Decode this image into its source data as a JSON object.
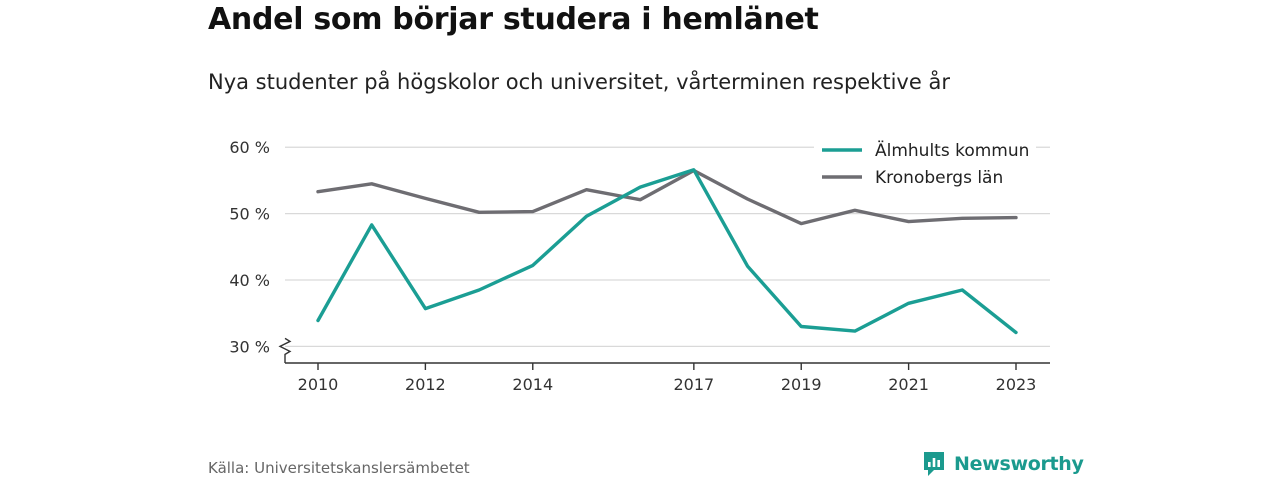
{
  "title": "Andel som börjar studera i hemlänet",
  "subtitle": "Nya studenter på högskolor och universitet, vårterminen respektive år",
  "source": "Källa: Universitetskanslersämbetet",
  "brand": {
    "name": "Newsworthy",
    "color": "#1b9a8e"
  },
  "chart_data": {
    "type": "line",
    "x": [
      2010,
      2011,
      2012,
      2013,
      2014,
      2015,
      2016,
      2017,
      2018,
      2019,
      2020,
      2021,
      2022,
      2023
    ],
    "x_tick_labels": [
      "2010",
      "2012",
      "2014",
      "2017",
      "2019",
      "2021",
      "2023"
    ],
    "y_tick_labels": [
      "30 %",
      "40 %",
      "50 %",
      "60 %"
    ],
    "y_ticks": [
      30,
      40,
      50,
      60
    ],
    "ylim": [
      27.5,
      61
    ],
    "y_axis_break": true,
    "grid": true,
    "legend_position": "top-right",
    "series": [
      {
        "name": "Älmhults kommun",
        "color": "#1b9e94",
        "values": [
          33.9,
          48.3,
          35.7,
          38.5,
          42.2,
          49.6,
          54.0,
          56.6,
          42.1,
          33.0,
          32.3,
          36.5,
          38.5,
          32.1
        ]
      },
      {
        "name": "Kronobergs län",
        "color": "#6e6d72",
        "values": [
          53.3,
          54.5,
          52.3,
          50.2,
          50.3,
          53.6,
          52.1,
          56.5,
          52.2,
          48.5,
          50.5,
          48.8,
          49.3,
          49.4
        ]
      }
    ]
  }
}
